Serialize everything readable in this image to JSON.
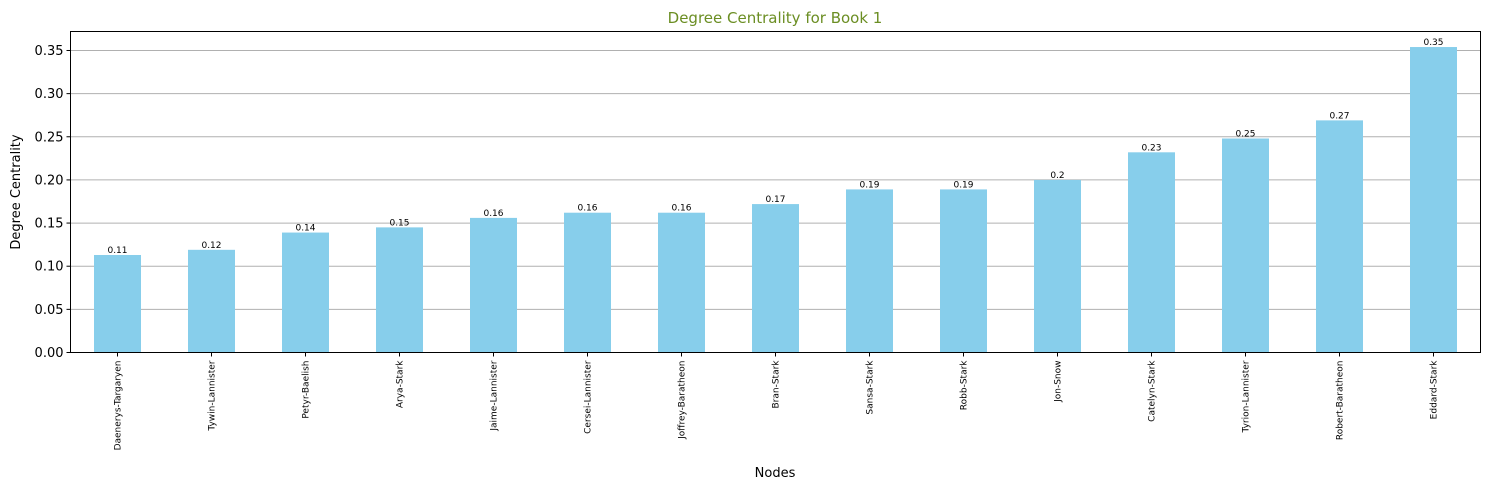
{
  "chart_data": {
    "type": "bar",
    "title": "Degree Centrality for Book 1",
    "xlabel": "Nodes",
    "ylabel": "Degree Centrality",
    "categories": [
      "Daenerys-Targaryen",
      "Tywin-Lannister",
      "Petyr-Baelish",
      "Arya-Stark",
      "Jaime-Lannister",
      "Cersei-Lannister",
      "Joffrey-Baratheon",
      "Bran-Stark",
      "Sansa-Stark",
      "Robb-Stark",
      "Jon-Snow",
      "Catelyn-Stark",
      "Tyrion-Lannister",
      "Robert-Baratheon",
      "Eddard-Stark"
    ],
    "values": [
      0.113,
      0.119,
      0.139,
      0.145,
      0.156,
      0.162,
      0.162,
      0.172,
      0.189,
      0.189,
      0.2,
      0.232,
      0.248,
      0.269,
      0.354
    ],
    "data_labels": [
      "0.11",
      "0.12",
      "0.14",
      "0.15",
      "0.16",
      "0.16",
      "0.16",
      "0.17",
      "0.19",
      "0.19",
      "0.2",
      "0.23",
      "0.25",
      "0.27",
      "0.35"
    ],
    "yticks": [
      "0.00",
      "0.05",
      "0.10",
      "0.15",
      "0.20",
      "0.25",
      "0.30",
      "0.35"
    ],
    "ylim": [
      0,
      0.372
    ],
    "grid": "y",
    "colors": {
      "bar": "#87ceeb",
      "title": "#6b8e23",
      "grid": "#b0b0b0"
    }
  }
}
